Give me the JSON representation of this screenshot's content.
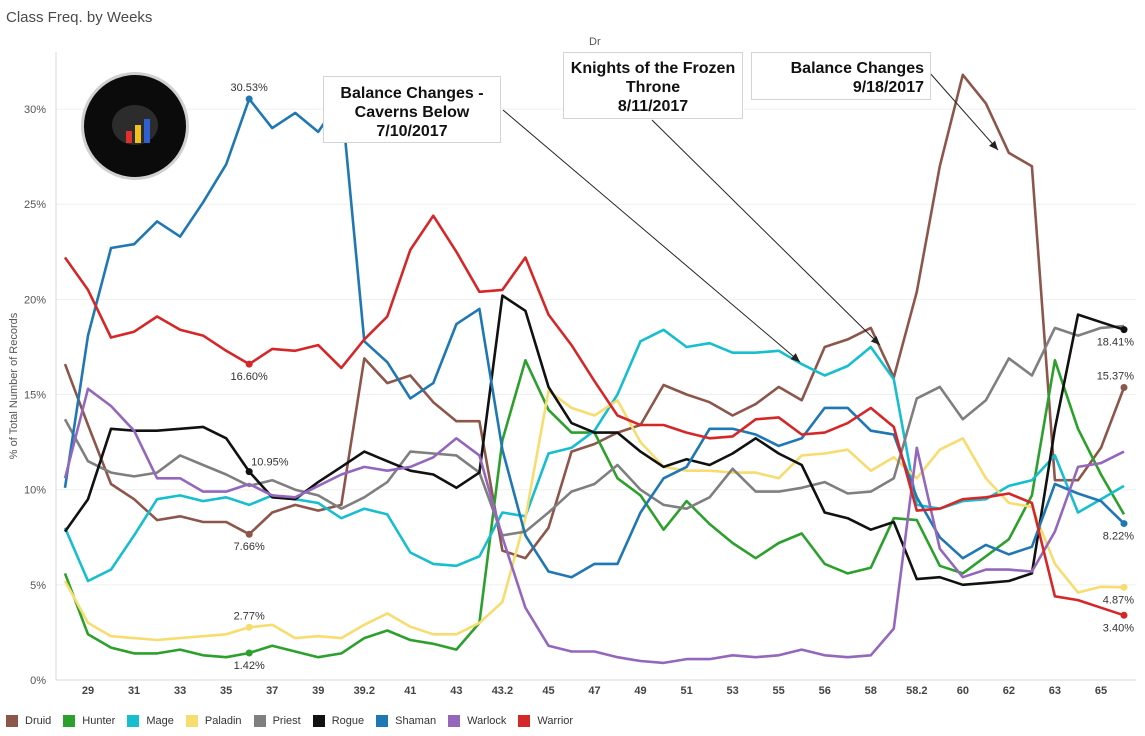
{
  "title": "Class Freq. by Weeks",
  "column_header": "Dr",
  "chart_data": {
    "type": "line",
    "ylabel": "% of Total Number of Records",
    "xlabel": "",
    "ylim": [
      0,
      33
    ],
    "yticks": [
      "0%",
      "5%",
      "10%",
      "15%",
      "20%",
      "25%",
      "30%"
    ],
    "x_ticks": [
      "29",
      "31",
      "33",
      "35",
      "37",
      "39",
      "39.2",
      "41",
      "43",
      "43.2",
      "45",
      "47",
      "49",
      "51",
      "53",
      "55",
      "56",
      "58",
      "58.2",
      "60",
      "62",
      "63",
      "65"
    ],
    "grid": "horizontal",
    "legend_position": "bottom",
    "series": [
      {
        "name": "Druid",
        "color": "#8c564b",
        "values": [
          16.6,
          13.4,
          10.3,
          9.5,
          8.4,
          8.6,
          8.3,
          8.3,
          7.66,
          8.8,
          9.2,
          8.9,
          9.2,
          16.9,
          15.6,
          16.0,
          14.6,
          13.6,
          13.6,
          6.8,
          6.4,
          8.0,
          12.0,
          12.4,
          13.0,
          13.4,
          15.5,
          15.0,
          14.6,
          13.9,
          14.5,
          15.4,
          14.7,
          17.5,
          17.9,
          18.5,
          15.9,
          20.4,
          27.0,
          31.8,
          30.3,
          27.7,
          27.0,
          10.5,
          10.5,
          12.2,
          15.37
        ]
      },
      {
        "name": "Hunter",
        "color": "#2ca02c",
        "values": [
          5.6,
          2.4,
          1.7,
          1.4,
          1.4,
          1.6,
          1.3,
          1.2,
          1.42,
          1.8,
          1.5,
          1.2,
          1.4,
          2.2,
          2.6,
          2.1,
          1.9,
          1.6,
          3.0,
          12.6,
          16.8,
          14.2,
          13.0,
          13.0,
          10.6,
          9.7,
          7.9,
          9.4,
          8.2,
          7.2,
          6.4,
          7.2,
          7.7,
          6.1,
          5.6,
          5.9,
          8.5,
          8.4,
          6.0,
          5.6,
          6.5,
          7.4,
          9.7,
          16.8,
          13.2,
          10.8,
          8.7
        ]
      },
      {
        "name": "Mage",
        "color": "#17becf",
        "values": [
          8.0,
          5.2,
          5.8,
          7.6,
          9.5,
          9.7,
          9.4,
          9.6,
          9.2,
          9.7,
          9.5,
          9.3,
          8.5,
          9.0,
          8.7,
          6.7,
          6.1,
          6.0,
          6.5,
          8.8,
          8.6,
          11.9,
          12.2,
          13.1,
          15.0,
          17.8,
          18.4,
          17.5,
          17.7,
          17.2,
          17.2,
          17.3,
          16.6,
          16.0,
          16.5,
          17.5,
          15.8,
          9.2,
          9.0,
          9.4,
          9.5,
          10.2,
          10.5,
          11.8,
          8.8,
          9.5,
          10.2
        ]
      },
      {
        "name": "Paladin",
        "color": "#f7dc6f",
        "values": [
          5.2,
          3.0,
          2.3,
          2.2,
          2.1,
          2.2,
          2.3,
          2.4,
          2.77,
          2.9,
          2.2,
          2.3,
          2.2,
          2.9,
          3.5,
          2.8,
          2.4,
          2.4,
          3.0,
          4.1,
          8.5,
          15.2,
          14.3,
          13.9,
          14.7,
          12.5,
          11.2,
          11.0,
          11.0,
          10.9,
          10.9,
          10.6,
          11.8,
          11.9,
          12.1,
          11.0,
          11.7,
          10.6,
          12.1,
          12.7,
          10.6,
          9.3,
          9.1,
          6.1,
          4.6,
          4.9,
          4.87
        ]
      },
      {
        "name": "Priest",
        "color": "#7f7f7f",
        "values": [
          13.7,
          11.5,
          10.9,
          10.7,
          10.9,
          11.8,
          11.3,
          10.8,
          10.2,
          10.5,
          10.0,
          9.7,
          9.0,
          9.6,
          10.4,
          12.0,
          11.9,
          11.8,
          10.9,
          7.6,
          7.8,
          8.8,
          9.9,
          10.3,
          11.3,
          10.0,
          9.2,
          9.0,
          9.6,
          11.1,
          9.9,
          9.9,
          10.1,
          10.4,
          9.8,
          9.9,
          10.6,
          14.8,
          15.4,
          13.7,
          14.7,
          16.9,
          16.0,
          18.5,
          18.1,
          18.5,
          18.6
        ]
      },
      {
        "name": "Rogue",
        "color": "#111111",
        "values": [
          7.8,
          9.5,
          13.2,
          13.1,
          13.1,
          13.2,
          13.3,
          12.7,
          10.95,
          9.6,
          9.5,
          10.4,
          11.2,
          12.0,
          11.5,
          11.0,
          10.8,
          10.1,
          10.9,
          20.2,
          19.4,
          15.4,
          13.5,
          13.0,
          13.0,
          12.0,
          11.2,
          11.6,
          11.3,
          11.9,
          12.7,
          11.9,
          11.3,
          8.8,
          8.5,
          7.9,
          8.3,
          5.3,
          5.4,
          5.0,
          5.1,
          5.2,
          5.6,
          13.2,
          19.2,
          18.8,
          18.41
        ]
      },
      {
        "name": "Shaman",
        "color": "#1f77b4",
        "values": [
          10.1,
          18.1,
          22.7,
          22.9,
          24.1,
          23.3,
          25.1,
          27.1,
          30.53,
          29.0,
          29.8,
          28.8,
          30.6,
          17.8,
          16.7,
          14.8,
          15.6,
          18.7,
          19.5,
          12.1,
          7.6,
          5.7,
          5.4,
          6.1,
          6.1,
          8.8,
          10.6,
          11.2,
          13.2,
          13.2,
          12.9,
          12.3,
          12.7,
          14.3,
          14.3,
          13.1,
          12.9,
          9.6,
          7.5,
          6.4,
          7.1,
          6.6,
          7.0,
          10.3,
          9.8,
          9.4,
          8.22
        ]
      },
      {
        "name": "Warlock",
        "color": "#9467bd",
        "values": [
          10.6,
          15.3,
          14.4,
          13.1,
          10.6,
          10.6,
          9.9,
          9.9,
          10.3,
          9.7,
          9.6,
          10.2,
          10.8,
          11.2,
          11.0,
          11.2,
          11.7,
          12.7,
          11.8,
          7.5,
          3.8,
          1.8,
          1.5,
          1.5,
          1.2,
          1.0,
          0.9,
          1.1,
          1.1,
          1.3,
          1.2,
          1.3,
          1.6,
          1.3,
          1.2,
          1.3,
          2.7,
          12.2,
          6.9,
          5.4,
          5.8,
          5.8,
          5.7,
          7.8,
          11.2,
          11.4,
          12.0
        ]
      },
      {
        "name": "Warrior",
        "color": "#d62728",
        "values": [
          22.2,
          20.5,
          18.0,
          18.3,
          19.1,
          18.4,
          18.1,
          17.3,
          16.6,
          17.4,
          17.3,
          17.6,
          16.4,
          17.9,
          19.1,
          22.6,
          24.4,
          22.5,
          20.4,
          20.5,
          22.2,
          19.2,
          17.6,
          15.7,
          13.9,
          13.4,
          13.4,
          13.0,
          12.7,
          12.8,
          13.7,
          13.8,
          12.9,
          13.0,
          13.5,
          14.3,
          13.3,
          8.9,
          9.0,
          9.5,
          9.6,
          9.8,
          9.3,
          4.4,
          4.2,
          3.8,
          3.4
        ]
      }
    ],
    "point_labels": [
      {
        "series": "Shaman",
        "index": 8,
        "text": "30.53%",
        "placement": "above"
      },
      {
        "series": "Warrior",
        "index": 8,
        "text": "16.60%",
        "placement": "below"
      },
      {
        "series": "Rogue",
        "index": 8,
        "text": "10.95%",
        "placement": "right"
      },
      {
        "series": "Druid",
        "index": 8,
        "text": "7.66%",
        "placement": "below"
      },
      {
        "series": "Paladin",
        "index": 8,
        "text": "2.77%",
        "placement": "above"
      },
      {
        "series": "Hunter",
        "index": 8,
        "text": "1.42%",
        "placement": "below"
      },
      {
        "series": "Rogue",
        "index": 46,
        "text": "18.41%",
        "placement": "below"
      },
      {
        "series": "Druid",
        "index": 46,
        "text": "15.37%",
        "placement": "above"
      },
      {
        "series": "Shaman",
        "index": 46,
        "text": "8.22%",
        "placement": "below"
      },
      {
        "series": "Paladin",
        "index": 46,
        "text": "4.87%",
        "placement": "below"
      },
      {
        "series": "Warrior",
        "index": 46,
        "text": "3.40%",
        "placement": "below"
      }
    ],
    "annotations": [
      {
        "lines": [
          "Balance Changes -",
          "Caverns Below",
          "7/10/2017"
        ]
      },
      {
        "lines": [
          "Knights of the Frozen",
          "Throne",
          "8/11/2017"
        ]
      },
      {
        "lines": [
          "Balance Changes",
          "9/18/2017"
        ]
      }
    ]
  }
}
